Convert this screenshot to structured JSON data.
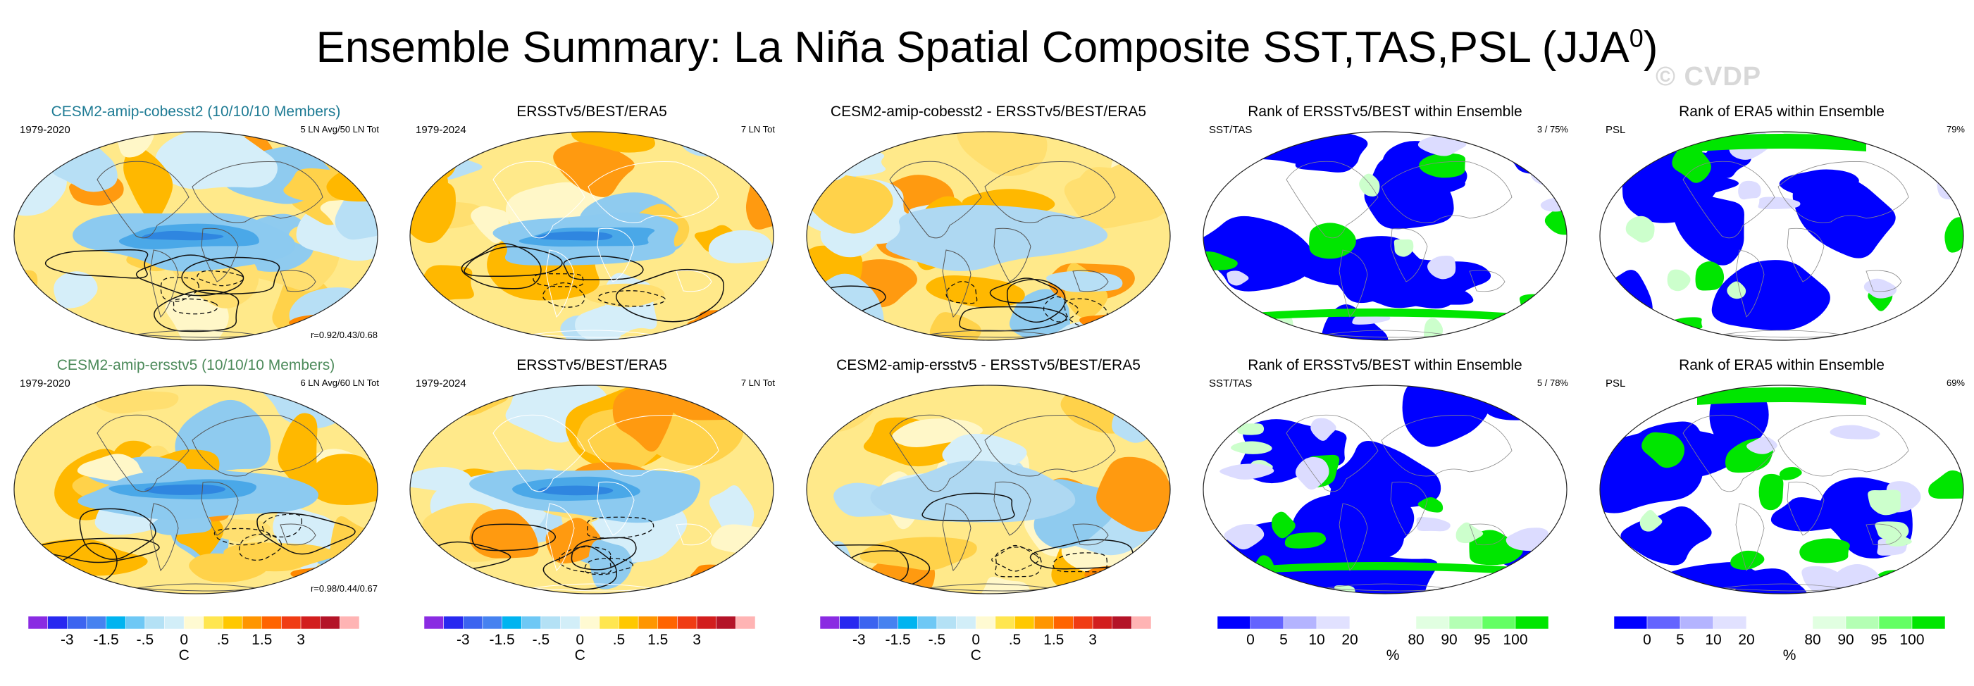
{
  "header": {
    "title_main": "Ensemble Summary: La Niña Spatial Composite SST,TAS,PSL (JJA",
    "title_sup": "0",
    "title_end": ")",
    "watermark": "© CVDP"
  },
  "panels": [
    {
      "title": "CESM2-amip-cobesst2 (10/10/10 Members)",
      "left": "1979-2020",
      "right_l1": "5 LN Avg/50 LN Tot",
      "right_l2": "",
      "corr": "r=0.92/0.43/0.68",
      "type": "anom",
      "variant": 1
    },
    {
      "title": "ERSSTv5/BEST/ERA5",
      "left": "1979-2024",
      "right_l1": "7 LN Tot",
      "right_l2": "",
      "corr": "",
      "type": "anom",
      "variant": 2
    },
    {
      "title": "CESM2-amip-cobesst2 - ERSSTv5/BEST/ERA5",
      "left": "",
      "right_l1": "",
      "right_l2": "",
      "corr": "",
      "type": "anom",
      "variant": 3
    },
    {
      "title": "Rank of ERSSTv5/BEST within Ensemble",
      "left": "SST/TAS",
      "right_l1": "3 / 75%",
      "right_l2": "",
      "corr": "",
      "type": "rank",
      "variant": 4
    },
    {
      "title": "Rank of ERA5 within Ensemble",
      "left": "PSL",
      "right_l1": "79%",
      "right_l2": "",
      "corr": "",
      "type": "rank",
      "variant": 5
    },
    {
      "title": "CESM2-amip-ersstv5 (10/10/10 Members)",
      "left": "1979-2020",
      "right_l1": "6 LN Avg/60 LN Tot",
      "right_l2": "",
      "corr": "r=0.98/0.44/0.67",
      "type": "anom",
      "variant": 6
    },
    {
      "title": "ERSSTv5/BEST/ERA5",
      "left": "1979-2024",
      "right_l1": "7 LN Tot",
      "right_l2": "",
      "corr": "",
      "type": "anom",
      "variant": 7
    },
    {
      "title": "CESM2-amip-ersstv5 - ERSSTv5/BEST/ERA5",
      "left": "",
      "right_l1": "",
      "right_l2": "",
      "corr": "",
      "type": "anom",
      "variant": 8
    },
    {
      "title": "Rank of ERSSTv5/BEST within Ensemble",
      "left": "SST/TAS",
      "right_l1": "5 / 78%",
      "right_l2": "",
      "corr": "",
      "type": "rank",
      "variant": 9
    },
    {
      "title": "Rank of ERA5 within Ensemble",
      "left": "PSL",
      "right_l1": "69%",
      "right_l2": "",
      "corr": "",
      "type": "rank",
      "variant": 10
    }
  ],
  "anom_colorbar": {
    "colors": [
      "#8a2be2",
      "#2828f0",
      "#3c64f0",
      "#4682f0",
      "#00b4f0",
      "#6ec8f5",
      "#b4e1f5",
      "#d2eef8",
      "#fffad2",
      "#ffe650",
      "#ffc800",
      "#ff9600",
      "#ff6400",
      "#f03c14",
      "#d21e1e",
      "#b41428",
      "#ffb4b4"
    ],
    "ticks": [
      "-3",
      "-1.5",
      "-.5",
      "0",
      ".5",
      "1.5",
      "3"
    ],
    "tick_index": [
      2,
      4,
      6,
      8,
      10,
      12,
      14
    ],
    "unit": "C"
  },
  "rank_colorbar": {
    "colors": [
      "#0000ff",
      "#6464ff",
      "#b4b4ff",
      "#e1e1ff",
      "#ffffff",
      "#ffffff",
      "#e1ffe1",
      "#b4ffb4",
      "#64ff64",
      "#00e600"
    ],
    "ticks": [
      "0",
      "5",
      "10",
      "20",
      "80",
      "90",
      "95",
      "100"
    ],
    "tick_index": [
      1,
      2,
      3,
      4,
      6,
      7,
      8,
      9
    ],
    "unit": "%"
  }
}
